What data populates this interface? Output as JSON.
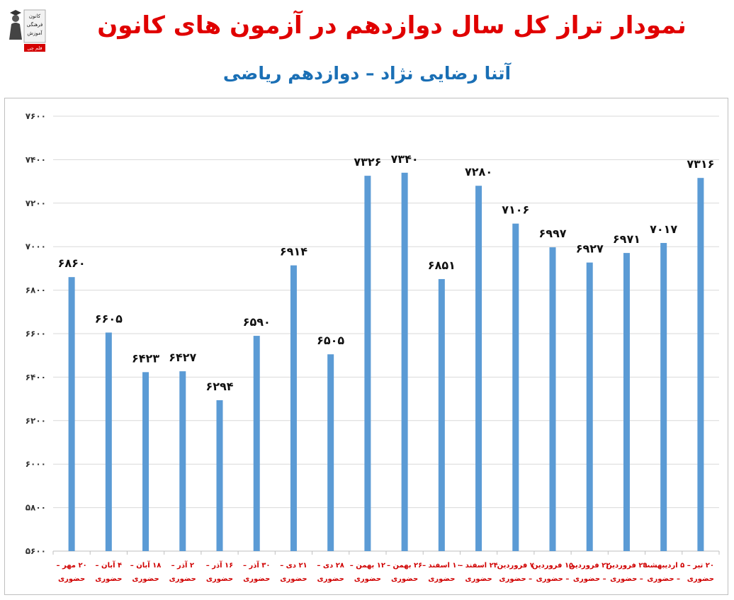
{
  "header": {
    "title": "نمودار تراز کل سال دوازدهم در آزمون های کانون",
    "subtitle": "آتنا رضایی نژاد – دوازدهم ریاضی"
  },
  "logo": {
    "lines": [
      "کانون",
      "فرهنگی",
      "آموزش"
    ],
    "badge": "قلم چی"
  },
  "colors": {
    "title": "#e00000",
    "subtitle": "#1a6fb5",
    "bar": "#5b9bd5",
    "grid": "#d9d9d9",
    "xlabel": "#d00000"
  },
  "chart_data": {
    "type": "bar",
    "title": "",
    "xlabel": "",
    "ylabel": "",
    "ylim": [
      5600,
      7600
    ],
    "yticks": [
      5600,
      5800,
      6000,
      6200,
      6400,
      6600,
      6800,
      7000,
      7200,
      7400,
      7600
    ],
    "ytick_labels": [
      "۵۶۰۰",
      "۵۸۰۰",
      "۶۰۰۰",
      "۶۲۰۰",
      "۶۴۰۰",
      "۶۶۰۰",
      "۶۸۰۰",
      "۷۰۰۰",
      "۷۲۰۰",
      "۷۴۰۰",
      "۷۶۰۰"
    ],
    "grid": "horizontal",
    "categories": [
      [
        "۲۰ مهر –",
        "حضوری"
      ],
      [
        "۴ آبان –",
        "حضوری"
      ],
      [
        "۱۸ آبان –",
        "حضوری"
      ],
      [
        "۲ آذر –",
        "حضوری"
      ],
      [
        "۱۶ آذر –",
        "حضوری"
      ],
      [
        "۳۰ آذر –",
        "حضوری"
      ],
      [
        "۲۱ دی –",
        "حضوری"
      ],
      [
        "۲۸ دی –",
        "حضوری"
      ],
      [
        "۱۲ بهمن –",
        "حضوری"
      ],
      [
        "۲۶ بهمن –",
        "حضوری"
      ],
      [
        "۱۰ اسفند –",
        "حضوری"
      ],
      [
        "۲۴ اسفند –",
        "حضوری"
      ],
      [
        "۷ فروردین",
        "– حضوری"
      ],
      [
        "۱۵ فروردین",
        "– حضوری"
      ],
      [
        "۲۲ فروردین",
        "– حضوری"
      ],
      [
        "۲۹ فروردین",
        "– حضوری"
      ],
      [
        "۵ اردیبهشت",
        "– حضوری"
      ],
      [
        "۲۰ تیر –",
        "حضوری"
      ]
    ],
    "values": [
      6860,
      6605,
      6423,
      6427,
      6294,
      6590,
      6914,
      6505,
      7326,
      7340,
      6851,
      7280,
      7106,
      6997,
      6927,
      6971,
      7017,
      7316
    ],
    "value_labels": [
      "۶۸۶۰",
      "۶۶۰۵",
      "۶۴۲۳",
      "۶۴۲۷",
      "۶۲۹۴",
      "۶۵۹۰",
      "۶۹۱۴",
      "۶۵۰۵",
      "۷۳۲۶",
      "۷۳۴۰",
      "۶۸۵۱",
      "۷۲۸۰",
      "۷۱۰۶",
      "۶۹۹۷",
      "۶۹۲۷",
      "۶۹۷۱",
      "۷۰۱۷",
      "۷۳۱۶"
    ]
  }
}
